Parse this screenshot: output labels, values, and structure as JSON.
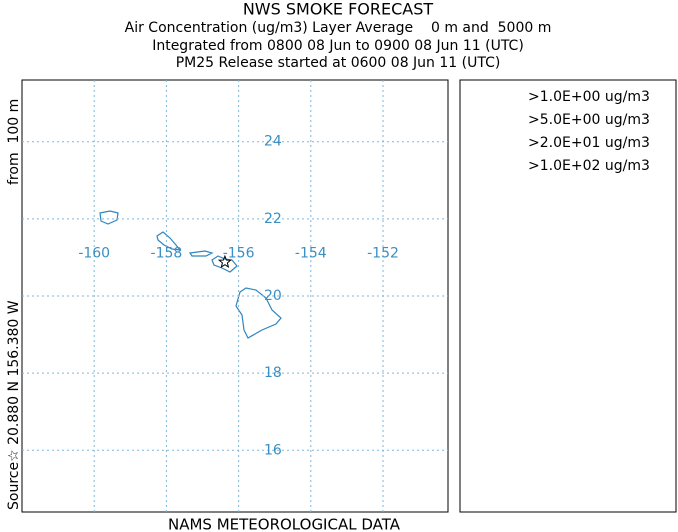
{
  "header": {
    "title": "NWS SMOKE FORECAST",
    "lines": [
      "Air Concentration (ug/m3) Layer Average    0 m and  5000 m",
      "Integrated from 0800 08 Jun to 0900 08 Jun 11 (UTC)",
      "PM25 Release started at 0600 08 Jun 11 (UTC)"
    ]
  },
  "map": {
    "lonlim": [
      -162,
      -150.2
    ],
    "latlim": [
      14.4,
      25.6
    ],
    "lon_ticks": [
      -160,
      -158,
      -156,
      -154,
      -152
    ],
    "lat_ticks": [
      24,
      22,
      20,
      18,
      16
    ],
    "source": {
      "label": "Source☆ 20.880 N 156.380 W",
      "height": "from  100 m",
      "lat": 20.88,
      "lon": -156.38
    }
  },
  "legend": [
    ">1.0E+00 ug/m3",
    ">5.0E+00 ug/m3",
    ">2.0E+01 ug/m3",
    ">1.0E+02 ug/m3"
  ],
  "footer": "NAMS METEOROLOGICAL DATA"
}
